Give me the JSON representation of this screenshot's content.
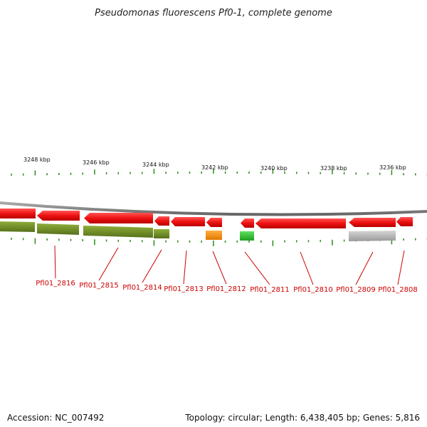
{
  "title": "Pseudomonas fluorescens Pf0-1, complete genome",
  "ticks": [
    "3248 kbp",
    "3246 kbp",
    "3244 kbp",
    "3242 kbp",
    "3240 kbp",
    "3238 kbp",
    "3236 kbp"
  ],
  "genes": [
    "Pfl01_2816",
    "Pfl01_2815",
    "Pfl01_2814",
    "Pfl01_2813",
    "Pfl01_2812",
    "Pfl01_2811",
    "Pfl01_2810",
    "Pfl01_2809",
    "Pfl01_2808"
  ],
  "colors": {
    "gene_red": "#ee1111",
    "olive": "#6b8a1e",
    "orange": "#f08a0a",
    "green": "#2fbf2f",
    "gray": "#b0b0b0",
    "backbone": "#888888",
    "tick": "#2a8a1a",
    "label": "#cc0000"
  },
  "footer": {
    "accession": "Accession: NC_007492",
    "summary": "Topology: circular; Length: 6,438,405 bp; Genes: 5,816"
  }
}
